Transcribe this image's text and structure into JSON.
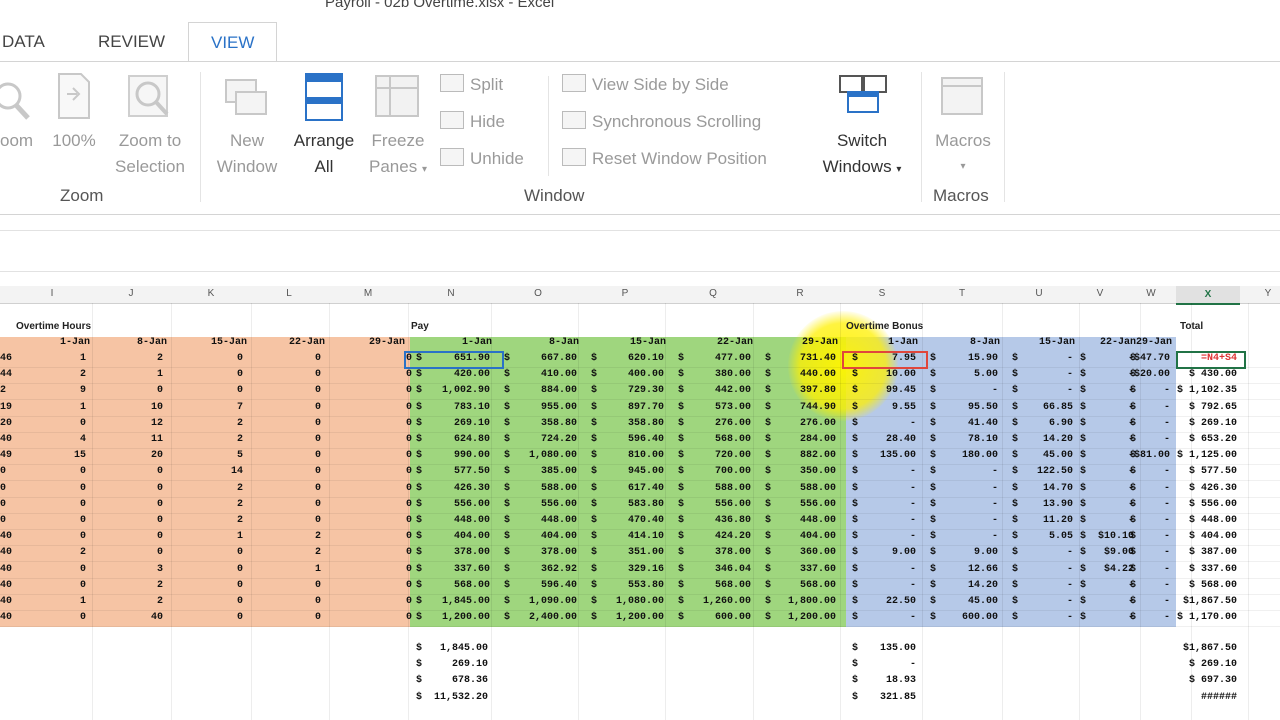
{
  "window": {
    "title": "Payroll - 02b Overtime.xlsx - Excel"
  },
  "tabs": [
    {
      "label": "DATA",
      "left": 2
    },
    {
      "label": "REVIEW",
      "left": 98
    },
    {
      "label": "VIEW",
      "left": 188,
      "active": true
    }
  ],
  "ribbon": {
    "zoom_group": "Zoom",
    "zoom": "oom",
    "hundred": "100%",
    "zoom_sel_1": "Zoom to",
    "zoom_sel_2": "Selection",
    "window_group": "Window",
    "new_window_1": "New",
    "new_window_2": "Window",
    "arrange_1": "Arrange",
    "arrange_2": "All",
    "freeze_1": "Freeze",
    "freeze_2": "Panes",
    "split": "Split",
    "hide": "Hide",
    "unhide": "Unhide",
    "side_by_side": "View Side by Side",
    "sync_scroll": "Synchronous Scrolling",
    "reset_pos": "Reset Window Position",
    "switch_1": "Switch",
    "switch_2": "Windows",
    "macros_group": "Macros",
    "macros": "Macros"
  },
  "columns": [
    "I",
    "J",
    "K",
    "L",
    "M",
    "N",
    "O",
    "P",
    "Q",
    "R",
    "S",
    "T",
    "U",
    "V",
    "W",
    "X",
    "Y"
  ],
  "sections": {
    "overtime_hours": "Overtime Hours",
    "pay": "Pay",
    "overtime_bonus": "Overtime Bonus",
    "total": "Total"
  },
  "date_headers": {
    "hours": [
      "1-Jan",
      "8-Jan",
      "15-Jan",
      "22-Jan",
      "29-Jan"
    ],
    "pay": [
      "1-Jan",
      "8-Jan",
      "15-Jan",
      "22-Jan",
      "29-Jan"
    ],
    "bonus": [
      "1-Jan",
      "8-Jan",
      "15-Jan",
      "22-Jan",
      "29-Jan"
    ]
  },
  "hours_rows": [
    [
      "1",
      "2",
      "0",
      "0"
    ],
    [
      "2",
      "1",
      "0",
      "0"
    ],
    [
      "9",
      "0",
      "0",
      "0"
    ],
    [
      "1",
      "10",
      "7",
      "0"
    ],
    [
      "0",
      "12",
      "2",
      "0"
    ],
    [
      "4",
      "11",
      "2",
      "0"
    ],
    [
      "15",
      "20",
      "5",
      "0"
    ],
    [
      "0",
      "0",
      "14",
      "0"
    ],
    [
      "0",
      "0",
      "2",
      "0"
    ],
    [
      "0",
      "0",
      "2",
      "0"
    ],
    [
      "0",
      "0",
      "2",
      "0"
    ],
    [
      "0",
      "0",
      "1",
      "2"
    ],
    [
      "2",
      "0",
      "0",
      "2"
    ],
    [
      "0",
      "3",
      "0",
      "1"
    ],
    [
      "0",
      "2",
      "0",
      "0"
    ],
    [
      "1",
      "2",
      "0",
      "0"
    ],
    [
      "0",
      "40",
      "0",
      "0"
    ]
  ],
  "pay_rows": [
    [
      "651.90",
      "667.80",
      "620.10",
      "477.00",
      "731.40"
    ],
    [
      "420.00",
      "410.00",
      "400.00",
      "380.00",
      "440.00"
    ],
    [
      "1,002.90",
      "884.00",
      "729.30",
      "442.00",
      "397.80"
    ],
    [
      "783.10",
      "955.00",
      "897.70",
      "573.00",
      "744.90"
    ],
    [
      "269.10",
      "358.80",
      "358.80",
      "276.00",
      "276.00"
    ],
    [
      "624.80",
      "724.20",
      "596.40",
      "568.00",
      "284.00"
    ],
    [
      "990.00",
      "1,080.00",
      "810.00",
      "720.00",
      "882.00"
    ],
    [
      "577.50",
      "385.00",
      "945.00",
      "700.00",
      "350.00"
    ],
    [
      "426.30",
      "588.00",
      "617.40",
      "588.00",
      "588.00"
    ],
    [
      "556.00",
      "556.00",
      "583.80",
      "556.00",
      "556.00"
    ],
    [
      "448.00",
      "448.00",
      "470.40",
      "436.80",
      "448.00"
    ],
    [
      "404.00",
      "404.00",
      "414.10",
      "424.20",
      "404.00"
    ],
    [
      "378.00",
      "378.00",
      "351.00",
      "378.00",
      "360.00"
    ],
    [
      "337.60",
      "362.92",
      "329.16",
      "346.04",
      "337.60"
    ],
    [
      "568.00",
      "596.40",
      "553.80",
      "568.00",
      "568.00"
    ],
    [
      "1,845.00",
      "1,090.00",
      "1,080.00",
      "1,260.00",
      "1,800.00"
    ],
    [
      "1,200.00",
      "2,400.00",
      "1,200.00",
      "600.00",
      "1,200.00"
    ]
  ],
  "bonus_rows": [
    [
      "7.95",
      "15.90",
      "-",
      "-",
      "$47.70"
    ],
    [
      "10.00",
      "5.00",
      "-",
      "-",
      "$20.00"
    ],
    [
      "99.45",
      "-",
      "-",
      "-",
      "-"
    ],
    [
      "9.55",
      "95.50",
      "66.85",
      "-",
      "-"
    ],
    [
      "-",
      "41.40",
      "6.90",
      "-",
      "-"
    ],
    [
      "28.40",
      "78.10",
      "14.20",
      "-",
      "-"
    ],
    [
      "135.00",
      "180.00",
      "45.00",
      "-",
      "$81.00"
    ],
    [
      "-",
      "-",
      "122.50",
      "-",
      "-"
    ],
    [
      "-",
      "-",
      "14.70",
      "-",
      "-"
    ],
    [
      "-",
      "-",
      "13.90",
      "-",
      "-"
    ],
    [
      "-",
      "-",
      "11.20",
      "-",
      "-"
    ],
    [
      "-",
      "-",
      "5.05",
      "$10.10",
      "-"
    ],
    [
      "9.00",
      "9.00",
      "-",
      "$9.00",
      "-"
    ],
    [
      "-",
      "12.66",
      "-",
      "$4.22",
      "-"
    ],
    [
      "-",
      "14.20",
      "-",
      "-",
      "-"
    ],
    [
      "22.50",
      "45.00",
      "-",
      "-",
      "-"
    ],
    [
      "-",
      "600.00",
      "-",
      "-",
      "-"
    ]
  ],
  "total_rows": [
    "=N4+S4",
    "$ 430.00",
    "$ 1,102.35",
    "$ 792.65",
    "$ 269.10",
    "$ 653.20",
    "$ 1,125.00",
    "$ 577.50",
    "$ 426.30",
    "$ 556.00",
    "$ 448.00",
    "$ 404.00",
    "$ 387.00",
    "$ 337.60",
    "$ 568.00",
    "$1,867.50",
    "$ 1,170.00"
  ],
  "left_edge": [
    "46",
    "44",
    "2",
    "19",
    "20",
    "40",
    "49",
    "0",
    "0",
    "0",
    "0",
    "40",
    "40",
    "40",
    "40",
    "40",
    "40"
  ],
  "summary": {
    "pay": [
      "1,845.00",
      "269.10",
      "678.36",
      "11,532.20"
    ],
    "bonus": [
      "135.00",
      "-",
      "18.93",
      "321.85"
    ],
    "total": [
      "$1,867.50",
      "$ 269.10",
      "$ 697.30",
      "######"
    ]
  },
  "colors": {
    "hours_band": "#f6c4a4",
    "pay_band": "#9fd67e",
    "bonus_band": "#b6c9e8",
    "accent": "#2a72c7",
    "excel_green": "#217346"
  }
}
